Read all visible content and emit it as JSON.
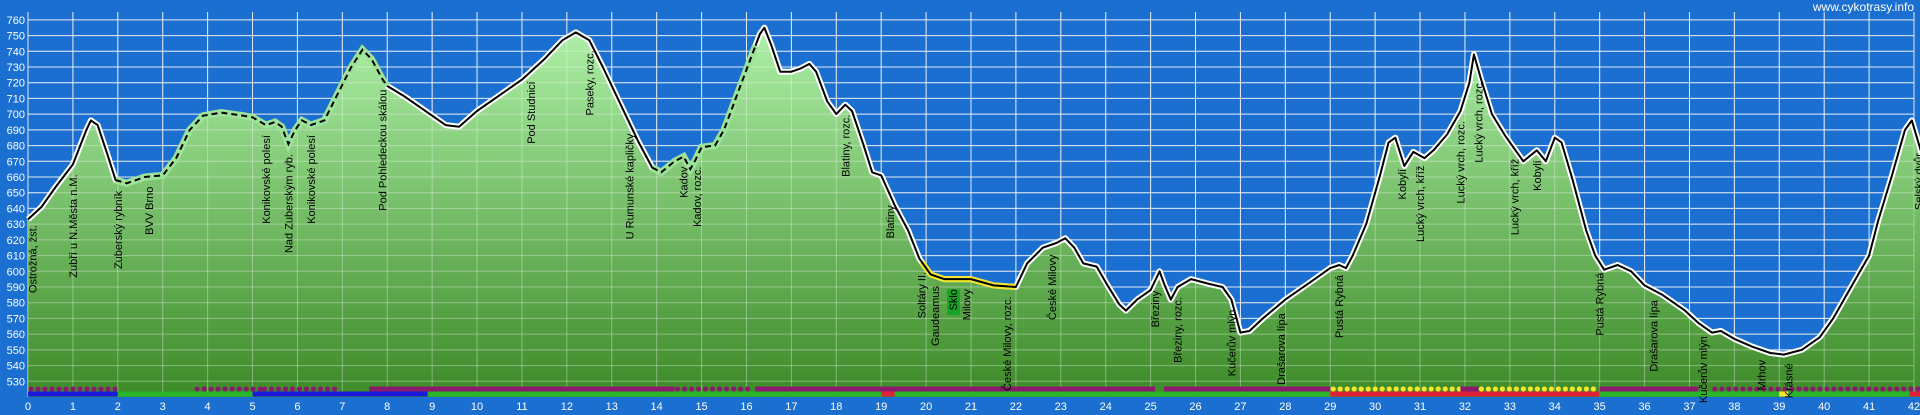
{
  "watermark": "www.cykotrasy.info",
  "chart_data": {
    "type": "area",
    "title": "",
    "xlabel": "",
    "ylabel": "",
    "xlim": [
      0,
      42
    ],
    "ylim": [
      520,
      765
    ],
    "y_ticks": [
      530,
      540,
      550,
      560,
      570,
      580,
      590,
      600,
      610,
      620,
      630,
      640,
      650,
      660,
      670,
      680,
      690,
      700,
      710,
      720,
      730,
      740,
      750,
      760
    ],
    "x_ticks": [
      0,
      1,
      2,
      3,
      4,
      5,
      6,
      7,
      8,
      9,
      10,
      11,
      12,
      13,
      14,
      15,
      16,
      17,
      18,
      19,
      20,
      21,
      22,
      23,
      24,
      25,
      26,
      27,
      28,
      29,
      30,
      31,
      32,
      33,
      34,
      35,
      36,
      37,
      38,
      39,
      40,
      41,
      42
    ],
    "grid": true,
    "colors": {
      "background": "#1a6fd0",
      "plot_top": "#aef0a8",
      "plot_bottom": "#3d8a28",
      "grid": "#d0d0d0",
      "track_solid": "#000000",
      "track_outline": "#ffffff",
      "track_unpaved": "#000000",
      "highlight_yellow": "#f5e52a"
    },
    "series": [
      {
        "points": [
          [
            0,
            633
          ],
          [
            0.3,
            641
          ],
          [
            0.6,
            653
          ],
          [
            1.0,
            668
          ],
          [
            1.3,
            690
          ],
          [
            1.4,
            696
          ],
          [
            1.55,
            693
          ],
          [
            1.75,
            676
          ],
          [
            1.95,
            658
          ],
          [
            2.2,
            656
          ],
          [
            2.6,
            660
          ],
          [
            3.0,
            661
          ],
          [
            3.3,
            672
          ],
          [
            3.6,
            690
          ],
          [
            3.9,
            699
          ],
          [
            4.3,
            701
          ],
          [
            4.8,
            699
          ],
          [
            5.0,
            698
          ],
          [
            5.3,
            693
          ],
          [
            5.5,
            695
          ],
          [
            5.65,
            692
          ],
          [
            5.8,
            681
          ],
          [
            5.95,
            690
          ],
          [
            6.1,
            696
          ],
          [
            6.3,
            693
          ],
          [
            6.6,
            696
          ],
          [
            6.9,
            713
          ],
          [
            7.2,
            730
          ],
          [
            7.45,
            741
          ],
          [
            7.65,
            735
          ],
          [
            7.9,
            722
          ],
          [
            8.0,
            718
          ],
          [
            8.4,
            711
          ],
          [
            8.8,
            703
          ],
          [
            9.3,
            693
          ],
          [
            9.6,
            692
          ],
          [
            10.0,
            702
          ],
          [
            10.5,
            712
          ],
          [
            11.0,
            722
          ],
          [
            11.5,
            735
          ],
          [
            11.9,
            747
          ],
          [
            12.2,
            752
          ],
          [
            12.5,
            747
          ],
          [
            12.8,
            730
          ],
          [
            13.2,
            706
          ],
          [
            13.6,
            682
          ],
          [
            13.9,
            666
          ],
          [
            14.1,
            663
          ],
          [
            14.4,
            670
          ],
          [
            14.6,
            673
          ],
          [
            14.75,
            665
          ],
          [
            14.85,
            670
          ],
          [
            15.0,
            679
          ],
          [
            15.3,
            680
          ],
          [
            15.5,
            690
          ],
          [
            15.8,
            713
          ],
          [
            16.1,
            736
          ],
          [
            16.3,
            751
          ],
          [
            16.4,
            755
          ],
          [
            16.55,
            744
          ],
          [
            16.75,
            727
          ],
          [
            17.0,
            727
          ],
          [
            17.2,
            729
          ],
          [
            17.4,
            732
          ],
          [
            17.55,
            727
          ],
          [
            17.8,
            708
          ],
          [
            18.0,
            700
          ],
          [
            18.2,
            706
          ],
          [
            18.35,
            702
          ],
          [
            18.6,
            681
          ],
          [
            18.8,
            663
          ],
          [
            19.0,
            661
          ],
          [
            19.3,
            642
          ],
          [
            19.6,
            626
          ],
          [
            19.85,
            608
          ],
          [
            20.1,
            598
          ],
          [
            20.4,
            595
          ],
          [
            21.0,
            595
          ],
          [
            21.5,
            591
          ],
          [
            22.0,
            590
          ],
          [
            22.25,
            605
          ],
          [
            22.6,
            615
          ],
          [
            22.9,
            618
          ],
          [
            23.1,
            621
          ],
          [
            23.3,
            615
          ],
          [
            23.5,
            605
          ],
          [
            23.8,
            603
          ],
          [
            24.0,
            593
          ],
          [
            24.3,
            579
          ],
          [
            24.45,
            575
          ],
          [
            24.7,
            582
          ],
          [
            25.0,
            588
          ],
          [
            25.1,
            594
          ],
          [
            25.2,
            600
          ],
          [
            25.3,
            592
          ],
          [
            25.45,
            582
          ],
          [
            25.6,
            590
          ],
          [
            25.9,
            595
          ],
          [
            26.3,
            592
          ],
          [
            26.6,
            590
          ],
          [
            26.8,
            582
          ],
          [
            27.0,
            561
          ],
          [
            27.2,
            562
          ],
          [
            27.5,
            570
          ],
          [
            28.0,
            582
          ],
          [
            28.5,
            592
          ],
          [
            28.8,
            598
          ],
          [
            29.0,
            602
          ],
          [
            29.2,
            604
          ],
          [
            29.35,
            602
          ],
          [
            29.5,
            610
          ],
          [
            29.8,
            630
          ],
          [
            30.1,
            660
          ],
          [
            30.3,
            682
          ],
          [
            30.45,
            685
          ],
          [
            30.65,
            667
          ],
          [
            30.85,
            676
          ],
          [
            31.1,
            672
          ],
          [
            31.3,
            677
          ],
          [
            31.6,
            687
          ],
          [
            31.9,
            702
          ],
          [
            32.1,
            720
          ],
          [
            32.2,
            738
          ],
          [
            32.35,
            723
          ],
          [
            32.6,
            700
          ],
          [
            32.9,
            686
          ],
          [
            33.3,
            670
          ],
          [
            33.6,
            677
          ],
          [
            33.8,
            670
          ],
          [
            34.0,
            685
          ],
          [
            34.15,
            682
          ],
          [
            34.4,
            658
          ],
          [
            34.7,
            626
          ],
          [
            34.9,
            610
          ],
          [
            35.1,
            601
          ],
          [
            35.4,
            604
          ],
          [
            35.7,
            600
          ],
          [
            36.0,
            591
          ],
          [
            36.4,
            585
          ],
          [
            36.9,
            575
          ],
          [
            37.2,
            567
          ],
          [
            37.5,
            561
          ],
          [
            37.7,
            562
          ],
          [
            38.0,
            557
          ],
          [
            38.4,
            552
          ],
          [
            38.8,
            548
          ],
          [
            39.1,
            547
          ],
          [
            39.5,
            550
          ],
          [
            39.9,
            558
          ],
          [
            40.2,
            570
          ],
          [
            40.5,
            585
          ],
          [
            40.8,
            600
          ],
          [
            41.0,
            610
          ],
          [
            41.2,
            632
          ],
          [
            41.5,
            660
          ],
          [
            41.8,
            690
          ],
          [
            41.95,
            696
          ],
          [
            42.2,
            672
          ],
          [
            42.3,
            678
          ]
        ]
      }
    ],
    "dashed_segments": [
      [
        1.95,
        8.0
      ],
      [
        13.9,
        16.2
      ]
    ],
    "yellow_segments": [
      [
        7.6,
        8.0
      ],
      [
        14.3,
        14.7
      ],
      [
        19.9,
        21.6
      ],
      [
        21.6,
        22.0
      ]
    ],
    "labels": [
      {
        "x": 0.1,
        "text": "Ostrožná, žst."
      },
      {
        "x": 1.0,
        "text": "Zubří u N.Města n.M."
      },
      {
        "x": 2.0,
        "text": "Zuberský rybník"
      },
      {
        "x": 2.7,
        "text": "BVV Brno"
      },
      {
        "x": 5.3,
        "text": "Konikovské polesí"
      },
      {
        "x": 5.8,
        "text": "Nad Zuberským ryb."
      },
      {
        "x": 6.3,
        "text": "Konikovské polesí"
      },
      {
        "x": 7.9,
        "text": "Pod Pohledeckou skálou"
      },
      {
        "x": 11.2,
        "text": "Pod Studnicí"
      },
      {
        "x": 12.5,
        "text": "Paseky, rozc."
      },
      {
        "x": 13.4,
        "text": "U Rumunské kapličky"
      },
      {
        "x": 14.6,
        "text": "Kadov"
      },
      {
        "x": 14.9,
        "text": "Kadov, rozc."
      },
      {
        "x": 18.2,
        "text": "Blatiny, rozc."
      },
      {
        "x": 19.2,
        "text": "Blatiny"
      },
      {
        "x": 19.9,
        "text": "Soltáry II."
      },
      {
        "x": 20.2,
        "text": "Gaudeamus"
      },
      {
        "x": 20.6,
        "text": "Sklo"
      },
      {
        "x": 20.9,
        "text": "Milovy"
      },
      {
        "x": 21.8,
        "text": "České Milovy, rozc."
      },
      {
        "x": 22.8,
        "text": "České Milovy"
      },
      {
        "x": 25.1,
        "text": "Březiny"
      },
      {
        "x": 25.6,
        "text": "Březiny, rozc."
      },
      {
        "x": 26.8,
        "text": "Kučerův mlýn"
      },
      {
        "x": 27.9,
        "text": "Drašarova lípa"
      },
      {
        "x": 29.2,
        "text": "Pustá Rybná"
      },
      {
        "x": 30.6,
        "text": "Kobylí"
      },
      {
        "x": 31.0,
        "text": "Lucký vrch, kříž"
      },
      {
        "x": 31.9,
        "text": "Lucký vrch, rozc."
      },
      {
        "x": 32.3,
        "text": "Lucký vrch, rozc."
      },
      {
        "x": 33.1,
        "text": "Lucký vrch, kříž"
      },
      {
        "x": 33.6,
        "text": "Kobylí"
      },
      {
        "x": 35.0,
        "text": "Pustá Rybná"
      },
      {
        "x": 36.2,
        "text": "Drašarova lípa"
      },
      {
        "x": 37.3,
        "text": "Kučerův mlýn"
      },
      {
        "x": 38.6,
        "text": "Mrhov"
      },
      {
        "x": 39.2,
        "text": "Krásné"
      },
      {
        "x": 42.1,
        "text": "Selský dvůr"
      }
    ],
    "marker_bars": [
      {
        "row": 1,
        "from": 0,
        "to": 2.0,
        "color": "#8b1a6e",
        "style": "dots"
      },
      {
        "row": 1,
        "from": 3.7,
        "to": 5.2,
        "color": "#8b1a6e",
        "style": "dots"
      },
      {
        "row": 1,
        "from": 5.2,
        "to": 6.9,
        "color": "#8b1a6e",
        "style": "dots"
      },
      {
        "row": 1,
        "from": 7.6,
        "to": 14.4,
        "color": "#8b1a6e",
        "style": "solid"
      },
      {
        "row": 1,
        "from": 14.4,
        "to": 16.2,
        "color": "#8b1a6e",
        "style": "dots"
      },
      {
        "row": 1,
        "from": 16.2,
        "to": 25.1,
        "color": "#8b1a6e",
        "style": "solid"
      },
      {
        "row": 1,
        "from": 25.3,
        "to": 29.0,
        "color": "#8b1a6e",
        "style": "solid"
      },
      {
        "row": 1,
        "from": 29.0,
        "to": 31.9,
        "color": "#f5e52a",
        "style": "dots"
      },
      {
        "row": 1,
        "from": 31.9,
        "to": 32.3,
        "color": "#8b1a6e",
        "style": "solid"
      },
      {
        "row": 1,
        "from": 32.3,
        "to": 35.0,
        "color": "#f5e52a",
        "style": "dots"
      },
      {
        "row": 1,
        "from": 35.0,
        "to": 37.2,
        "color": "#8b1a6e",
        "style": "solid"
      },
      {
        "row": 1,
        "from": 37.5,
        "to": 42.3,
        "color": "#8b1a6e",
        "style": "dots"
      },
      {
        "row": 2,
        "from": 0,
        "to": 2.0,
        "color": "#1a1adb",
        "style": "solid"
      },
      {
        "row": 2,
        "from": 2.0,
        "to": 5.0,
        "color": "#27b52a",
        "style": "solid"
      },
      {
        "row": 2,
        "from": 5.0,
        "to": 8.9,
        "color": "#1a1adb",
        "style": "solid"
      },
      {
        "row": 2,
        "from": 8.9,
        "to": 19.0,
        "color": "#27b52a",
        "style": "solid"
      },
      {
        "row": 2,
        "from": 19.0,
        "to": 19.3,
        "color": "#e0203a",
        "style": "solid"
      },
      {
        "row": 2,
        "from": 19.3,
        "to": 29.0,
        "color": "#27b52a",
        "style": "solid"
      },
      {
        "row": 2,
        "from": 29.0,
        "to": 35.0,
        "color": "#e0203a",
        "style": "solid"
      },
      {
        "row": 2,
        "from": 35.0,
        "to": 39.0,
        "color": "#27b52a",
        "style": "solid"
      },
      {
        "row": 2,
        "from": 39.0,
        "to": 39.2,
        "color": "#f5e52a",
        "style": "solid"
      },
      {
        "row": 2,
        "from": 39.2,
        "to": 41.9,
        "color": "#27b52a",
        "style": "solid"
      },
      {
        "row": 2,
        "from": 41.9,
        "to": 42.3,
        "color": "#e0203a",
        "style": "solid"
      }
    ]
  },
  "highlighted_label": "Sklo"
}
